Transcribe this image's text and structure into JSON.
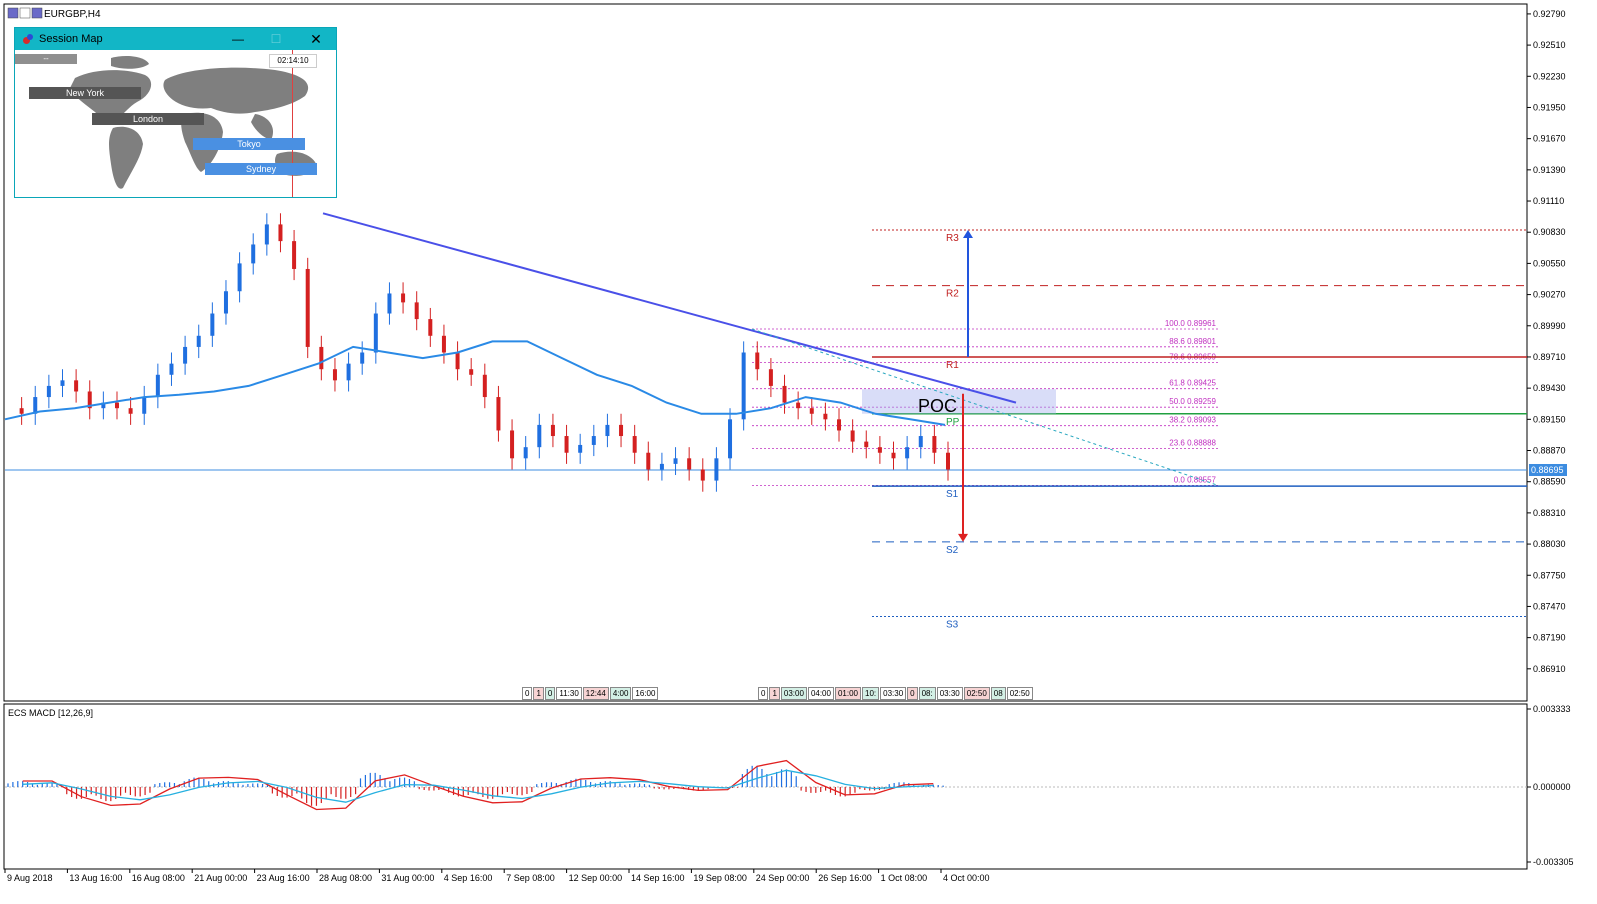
{
  "window": {
    "title": "EURGBP,H4"
  },
  "session_map": {
    "title": "Session Map",
    "clock": "02:14:10",
    "button_label": "--",
    "sessions": [
      {
        "name": "New York",
        "color": "#555555"
      },
      {
        "name": "London",
        "color": "#555555"
      },
      {
        "name": "Tokyo",
        "color": "#4a90e2"
      },
      {
        "name": "Sydney",
        "color": "#4a90e2"
      }
    ],
    "icons": {
      "minimize": "minimize-icon",
      "maximize": "maximize-icon",
      "close": "close-icon"
    }
  },
  "timer_strip_left": [
    "0",
    "1",
    "0",
    "11:30",
    "12:44",
    "4:00",
    "16:00"
  ],
  "timer_strip_right": [
    "0",
    "1",
    "03:00",
    "04:00",
    "01:00",
    "10:",
    "03:30",
    "0",
    "08:",
    "03:30",
    "02:50",
    "08",
    "02:50"
  ],
  "current_price_label": "0.88695",
  "price_axis": [
    "0.92790",
    "0.92510",
    "0.92230",
    "0.91950",
    "0.91670",
    "0.91390",
    "0.91110",
    "0.90830",
    "0.90550",
    "0.90270",
    "0.89990",
    "0.89710",
    "0.89430",
    "0.89150",
    "0.88870",
    "0.88590",
    "0.88310",
    "0.88030",
    "0.87750",
    "0.87470",
    "0.87190",
    "0.86910"
  ],
  "time_axis": [
    "9 Aug 2018",
    "13 Aug 16:00",
    "16 Aug 08:00",
    "21 Aug 00:00",
    "23 Aug 16:00",
    "28 Aug 08:00",
    "31 Aug 00:00",
    "4 Sep 16:00",
    "7 Sep 08:00",
    "12 Sep 00:00",
    "14 Sep 16:00",
    "19 Sep 08:00",
    "24 Sep 00:00",
    "26 Sep 16:00",
    "1 Oct 08:00",
    "4 Oct 00:00"
  ],
  "pivot_levels": [
    {
      "name": "R3",
      "price": 0.9085,
      "color": "#c02020",
      "style": "dotted"
    },
    {
      "name": "R2",
      "price": 0.9035,
      "color": "#c02020",
      "style": "dashed"
    },
    {
      "name": "R1",
      "price": 0.8971,
      "color": "#c02020",
      "style": "solid"
    },
    {
      "name": "PP",
      "price": 0.892,
      "color": "#20a040",
      "style": "solid"
    },
    {
      "name": "S1",
      "price": 0.8855,
      "color": "#1f5fc0",
      "style": "solid"
    },
    {
      "name": "S2",
      "price": 0.8805,
      "color": "#1f5fc0",
      "style": "dashed"
    },
    {
      "name": "S3",
      "price": 0.8738,
      "color": "#1f5fc0",
      "style": "dotted"
    }
  ],
  "fib_levels": [
    {
      "ratio": "100.0",
      "price": "0.89961"
    },
    {
      "ratio": "88.6",
      "price": "0.89801"
    },
    {
      "ratio": "78.6",
      "price": "0.89659"
    },
    {
      "ratio": "61.8",
      "price": "0.89425"
    },
    {
      "ratio": "50.0",
      "price": "0.89259"
    },
    {
      "ratio": "38.2",
      "price": "0.89093"
    },
    {
      "ratio": "23.6",
      "price": "0.88888"
    },
    {
      "ratio": "0.0",
      "price": "0.88557"
    }
  ],
  "poc_label": "POC",
  "macd": {
    "label": "ECS MACD [12,26,9]",
    "axis": [
      "0.003333",
      "0.000000",
      "-0.003305"
    ]
  },
  "chart_data": {
    "type": "candlestick",
    "symbol": "EURGBP",
    "timeframe": "H4",
    "ylim": [
      0.8663,
      0.9287
    ],
    "series": [
      {
        "name": "EURGBP",
        "values": [
          0.8925,
          0.892,
          0.8935,
          0.8945,
          0.895,
          0.894,
          0.8925,
          0.893,
          0.8925,
          0.892,
          0.8935,
          0.8955,
          0.8965,
          0.898,
          0.899,
          0.901,
          0.903,
          0.9055,
          0.9072,
          0.909,
          0.9075,
          0.905,
          0.898,
          0.896,
          0.895,
          0.8965,
          0.8975,
          0.901,
          0.9028,
          0.902,
          0.9005,
          0.899,
          0.8975,
          0.896,
          0.8955,
          0.8935,
          0.8905,
          0.888,
          0.889,
          0.891,
          0.89,
          0.8885,
          0.8892,
          0.89,
          0.891,
          0.89,
          0.8885,
          0.887,
          0.8875,
          0.888,
          0.887,
          0.886,
          0.888,
          0.8915,
          0.8975,
          0.896,
          0.8945,
          0.893,
          0.8925,
          0.892,
          0.8915,
          0.8905,
          0.8895,
          0.889,
          0.8885,
          0.888,
          0.889,
          0.89,
          0.8885,
          0.887
        ]
      }
    ],
    "ema": {
      "name": "EMA",
      "values": [
        0.8915,
        0.8922,
        0.8925,
        0.893,
        0.8935,
        0.8937,
        0.894,
        0.8945,
        0.8955,
        0.8965,
        0.898,
        0.8975,
        0.897,
        0.8975,
        0.8985,
        0.8985,
        0.897,
        0.8955,
        0.8945,
        0.893,
        0.892,
        0.892,
        0.8925,
        0.8935,
        0.893,
        0.892,
        0.8915,
        0.891
      ]
    },
    "macd_histogram": [
      0.0005,
      0.0003,
      -0.001,
      -0.0012,
      -0.0008,
      0.0004,
      0.0008,
      0.0005,
      0.0003,
      -0.0009,
      -0.0016,
      -0.001,
      0.0012,
      0.0008,
      -0.0003,
      -0.0008,
      -0.001,
      -0.0007,
      0.0004,
      0.0007,
      0.0005,
      0.0003,
      -0.0002,
      -0.0003,
      -0.0001,
      0.0018,
      0.0015,
      -0.0005,
      -0.0008,
      -0.0003,
      0.0004,
      0.0002
    ],
    "trend_line": {
      "from_price": 0.91,
      "to_price": 0.893
    },
    "poc_zone": [
      0.892,
      0.8942
    ]
  }
}
